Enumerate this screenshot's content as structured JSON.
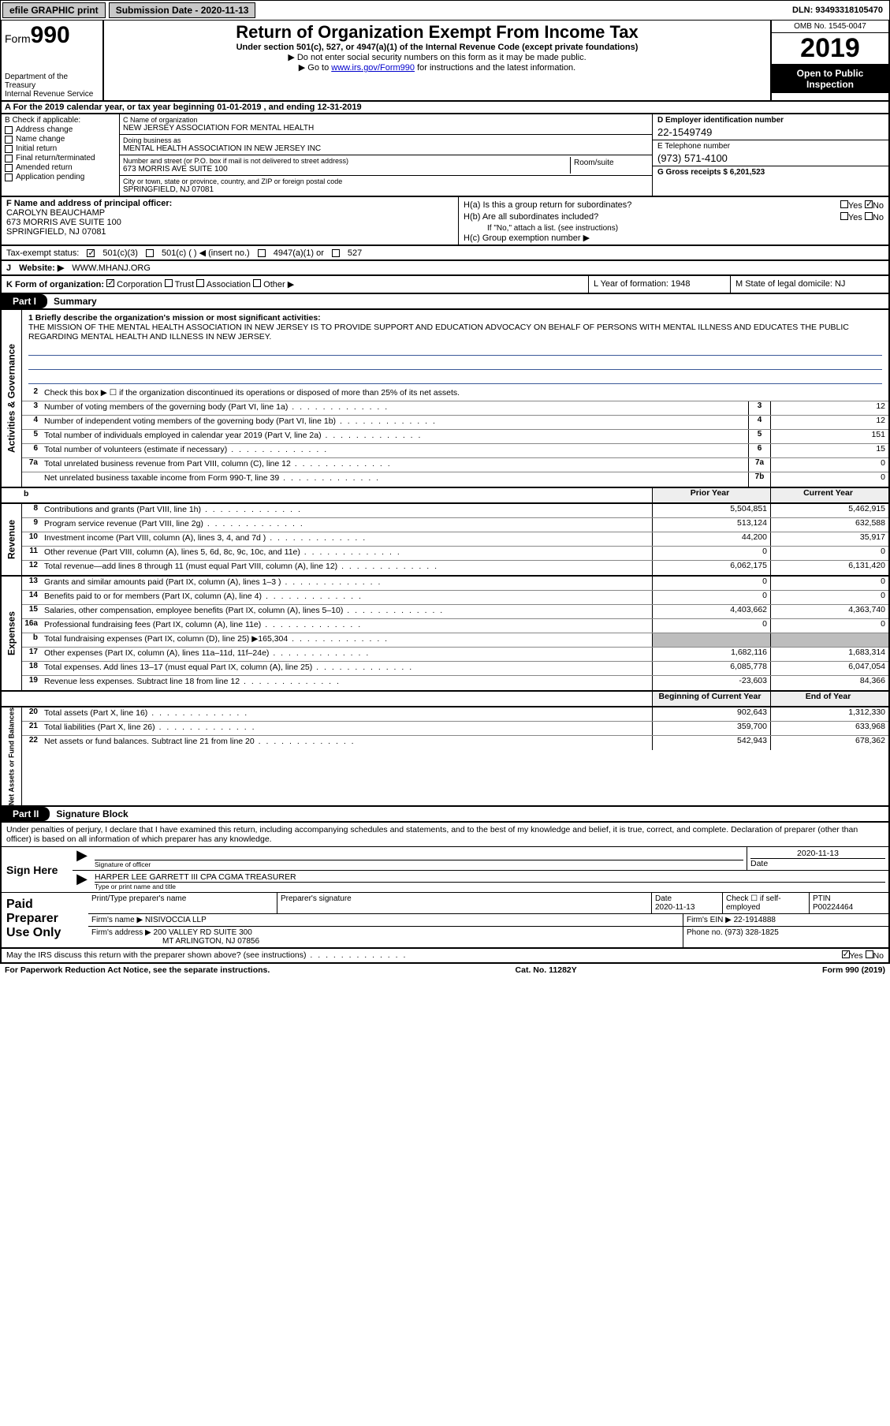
{
  "top": {
    "efile": "efile GRAPHIC print",
    "submission": "Submission Date - 2020-11-13",
    "dln": "DLN: 93493318105470"
  },
  "header": {
    "form_prefix": "Form",
    "form_num": "990",
    "dept": "Department of the Treasury",
    "irs": "Internal Revenue Service",
    "title": "Return of Organization Exempt From Income Tax",
    "sub": "Under section 501(c), 527, or 4947(a)(1) of the Internal Revenue Code (except private foundations)",
    "note1": "▶ Do not enter social security numbers on this form as it may be made public.",
    "note2_pre": "▶ Go to ",
    "note2_link": "www.irs.gov/Form990",
    "note2_post": " for instructions and the latest information.",
    "omb": "OMB No. 1545-0047",
    "year": "2019",
    "open": "Open to Public",
    "inspection": "Inspection"
  },
  "rowA": "A For the 2019 calendar year, or tax year beginning 01-01-2019    , and ending 12-31-2019",
  "colB": {
    "title": "B Check if applicable:",
    "items": [
      "Address change",
      "Name change",
      "Initial return",
      "Final return/terminated",
      "Amended return",
      "Application pending"
    ]
  },
  "colC": {
    "name_lbl": "C Name of organization",
    "name": "NEW JERSEY ASSOCIATION FOR MENTAL HEALTH",
    "dba_lbl": "Doing business as",
    "dba": "MENTAL HEALTH ASSOCIATION IN NEW JERSEY INC",
    "addr_lbl": "Number and street (or P.O. box if mail is not delivered to street address)",
    "addr": "673 MORRIS AVE SUITE 100",
    "room_lbl": "Room/suite",
    "city_lbl": "City or town, state or province, country, and ZIP or foreign postal code",
    "city": "SPRINGFIELD, NJ  07081"
  },
  "colD": {
    "ein_lbl": "D Employer identification number",
    "ein": "22-1549749",
    "tel_lbl": "E Telephone number",
    "tel": "(973) 571-4100",
    "gross_lbl": "G Gross receipts $ 6,201,523"
  },
  "rowF": {
    "lbl": "F  Name and address of principal officer:",
    "name": "CAROLYN BEAUCHAMP",
    "addr1": "673 MORRIS AVE SUITE 100",
    "addr2": "SPRINGFIELD, NJ  07081"
  },
  "rowH": {
    "a": "H(a)  Is this a group return for subordinates?",
    "b": "H(b)  Are all subordinates included?",
    "b_note": "If \"No,\" attach a list. (see instructions)",
    "c": "H(c)  Group exemption number ▶",
    "yes": "Yes",
    "no": "No"
  },
  "taxexempt": {
    "lbl": "Tax-exempt status:",
    "opt1": "501(c)(3)",
    "opt2": "501(c) (  ) ◀ (insert no.)",
    "opt3": "4947(a)(1) or",
    "opt4": "527"
  },
  "rowJ": {
    "lbl": "J",
    "web": "Website: ▶",
    "url": "WWW.MHANJ.ORG"
  },
  "rowK": {
    "lbl": "K Form of organization:",
    "opts": [
      "Corporation",
      "Trust",
      "Association",
      "Other ▶"
    ],
    "L": "L Year of formation: 1948",
    "M": "M State of legal domicile: NJ"
  },
  "partI": {
    "tab": "Part I",
    "title": "Summary"
  },
  "mission": {
    "prompt": "1  Briefly describe the organization's mission or most significant activities:",
    "text": "THE MISSION OF THE MENTAL HEALTH ASSOCIATION IN NEW JERSEY IS TO PROVIDE SUPPORT AND EDUCATION ADVOCACY ON BEHALF OF PERSONS WITH MENTAL ILLNESS AND EDUCATES THE PUBLIC REGARDING MENTAL HEALTH AND ILLNESS IN NEW JERSEY."
  },
  "gov": {
    "side": "Activities & Governance",
    "line2": "Check this box ▶ ☐  if the organization discontinued its operations or disposed of more than 25% of its net assets.",
    "rows": [
      {
        "n": "3",
        "t": "Number of voting members of the governing body (Part VI, line 1a)",
        "box": "3",
        "v": "12"
      },
      {
        "n": "4",
        "t": "Number of independent voting members of the governing body (Part VI, line 1b)",
        "box": "4",
        "v": "12"
      },
      {
        "n": "5",
        "t": "Total number of individuals employed in calendar year 2019 (Part V, line 2a)",
        "box": "5",
        "v": "151"
      },
      {
        "n": "6",
        "t": "Total number of volunteers (estimate if necessary)",
        "box": "6",
        "v": "15"
      },
      {
        "n": "7a",
        "t": "Total unrelated business revenue from Part VIII, column (C), line 12",
        "box": "7a",
        "v": "0"
      },
      {
        "n": "",
        "t": "Net unrelated business taxable income from Form 990-T, line 39",
        "box": "7b",
        "v": "0"
      }
    ]
  },
  "cols": {
    "prior": "Prior Year",
    "current": "Current Year",
    "boy": "Beginning of Current Year",
    "eoy": "End of Year"
  },
  "rev": {
    "side": "Revenue",
    "rows": [
      {
        "n": "8",
        "t": "Contributions and grants (Part VIII, line 1h)",
        "p": "5,504,851",
        "c": "5,462,915"
      },
      {
        "n": "9",
        "t": "Program service revenue (Part VIII, line 2g)",
        "p": "513,124",
        "c": "632,588"
      },
      {
        "n": "10",
        "t": "Investment income (Part VIII, column (A), lines 3, 4, and 7d )",
        "p": "44,200",
        "c": "35,917"
      },
      {
        "n": "11",
        "t": "Other revenue (Part VIII, column (A), lines 5, 6d, 8c, 9c, 10c, and 11e)",
        "p": "0",
        "c": "0"
      },
      {
        "n": "12",
        "t": "Total revenue—add lines 8 through 11 (must equal Part VIII, column (A), line 12)",
        "p": "6,062,175",
        "c": "6,131,420"
      }
    ]
  },
  "exp": {
    "side": "Expenses",
    "rows": [
      {
        "n": "13",
        "t": "Grants and similar amounts paid (Part IX, column (A), lines 1–3 )",
        "p": "0",
        "c": "0"
      },
      {
        "n": "14",
        "t": "Benefits paid to or for members (Part IX, column (A), line 4)",
        "p": "0",
        "c": "0"
      },
      {
        "n": "15",
        "t": "Salaries, other compensation, employee benefits (Part IX, column (A), lines 5–10)",
        "p": "4,403,662",
        "c": "4,363,740"
      },
      {
        "n": "16a",
        "t": "Professional fundraising fees (Part IX, column (A), line 11e)",
        "p": "0",
        "c": "0"
      },
      {
        "n": "b",
        "t": "Total fundraising expenses (Part IX, column (D), line 25) ▶165,304",
        "p": "",
        "c": "",
        "shade": true
      },
      {
        "n": "17",
        "t": "Other expenses (Part IX, column (A), lines 11a–11d, 11f–24e)",
        "p": "1,682,116",
        "c": "1,683,314"
      },
      {
        "n": "18",
        "t": "Total expenses. Add lines 13–17 (must equal Part IX, column (A), line 25)",
        "p": "6,085,778",
        "c": "6,047,054"
      },
      {
        "n": "19",
        "t": "Revenue less expenses. Subtract line 18 from line 12",
        "p": "-23,603",
        "c": "84,366"
      }
    ]
  },
  "net": {
    "side": "Net Assets or Fund Balances",
    "rows": [
      {
        "n": "20",
        "t": "Total assets (Part X, line 16)",
        "p": "902,643",
        "c": "1,312,330"
      },
      {
        "n": "21",
        "t": "Total liabilities (Part X, line 26)",
        "p": "359,700",
        "c": "633,968"
      },
      {
        "n": "22",
        "t": "Net assets or fund balances. Subtract line 21 from line 20",
        "p": "542,943",
        "c": "678,362"
      }
    ]
  },
  "partII": {
    "tab": "Part II",
    "title": "Signature Block"
  },
  "sig": {
    "intro": "Under penalties of perjury, I declare that I have examined this return, including accompanying schedules and statements, and to the best of my knowledge and belief, it is true, correct, and complete. Declaration of preparer (other than officer) is based on all information of which preparer has any knowledge.",
    "sign_here": "Sign Here",
    "sig_lbl": "Signature of officer",
    "date": "2020-11-13",
    "date_lbl": "Date",
    "name": "HARPER LEE GARRETT III CPA CGMA  TREASURER",
    "name_lbl": "Type or print name and title"
  },
  "prep": {
    "title": "Paid Preparer Use Only",
    "h1": "Print/Type preparer's name",
    "h2": "Preparer's signature",
    "h3": "Date",
    "h4": "Check ☐ if self-employed",
    "h5": "PTIN",
    "date": "2020-11-13",
    "ptin": "P00224464",
    "firm_lbl": "Firm's name    ▶",
    "firm": "NISIVOCCIA LLP",
    "ein_lbl": "Firm's EIN ▶",
    "ein": "22-1914888",
    "addr_lbl": "Firm's address ▶",
    "addr1": "200 VALLEY RD SUITE 300",
    "addr2": "MT ARLINGTON, NJ  07856",
    "phone_lbl": "Phone no.",
    "phone": "(973) 328-1825"
  },
  "footer": {
    "q": "May the IRS discuss this return with the preparer shown above? (see instructions)",
    "yes": "Yes",
    "no": "No",
    "pra": "For Paperwork Reduction Act Notice, see the separate instructions.",
    "cat": "Cat. No. 11282Y",
    "form": "Form 990 (2019)"
  }
}
